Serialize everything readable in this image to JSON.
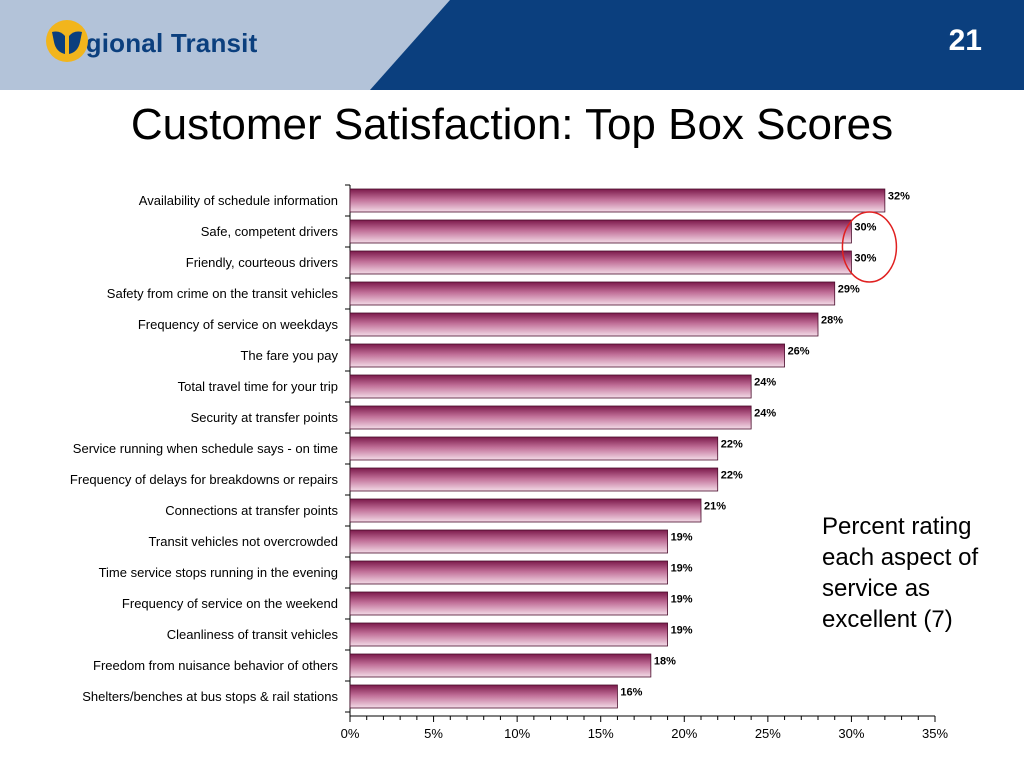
{
  "header": {
    "brand_name": "Regional Transit",
    "page_number": "21",
    "colors": {
      "band_dark": "#0b3f7e",
      "band_light": "#b3c3d9",
      "logo_mark": "#f2b51c"
    }
  },
  "title": "Customer Satisfaction: Top Box Scores",
  "caption": "Percent rating each aspect of service as excellent (7)",
  "chart_data": {
    "type": "bar",
    "orientation": "horizontal",
    "categories": [
      "Availability of schedule information",
      "Safe, competent drivers",
      "Friendly, courteous drivers",
      "Safety from crime on the transit vehicles",
      "Frequency of service on weekdays",
      "The fare you pay",
      "Total travel time for your trip",
      "Security at transfer points",
      "Service running when schedule says - on time",
      "Frequency of delays for breakdowns or repairs",
      "Connections at transfer points",
      "Transit vehicles not overcrowded",
      "Time service stops running in the evening",
      "Frequency of service on the weekend",
      "Cleanliness of transit vehicles",
      "Freedom from nuisance behavior of others",
      "Shelters/benches at bus stops & rail stations"
    ],
    "values": [
      32,
      30,
      30,
      29,
      28,
      26,
      24,
      24,
      22,
      22,
      21,
      19,
      19,
      19,
      19,
      18,
      16
    ],
    "data_labels": [
      "32%",
      "30%",
      "30%",
      "29%",
      "28%",
      "26%",
      "24%",
      "24%",
      "22%",
      "22%",
      "21%",
      "19%",
      "19%",
      "19%",
      "19%",
      "18%",
      "16%"
    ],
    "x_ticks": [
      "0%",
      "5%",
      "10%",
      "15%",
      "20%",
      "25%",
      "30%",
      "35%"
    ],
    "xlim": [
      0,
      35
    ],
    "highlighted": [
      "Safe, competent drivers",
      "Friendly, courteous drivers"
    ],
    "colors": {
      "bar_dark": "#7b1a4b",
      "bar_mid": "#c06e97",
      "bar_light": "#f3dbe7",
      "highlight_ring": "#e02020"
    },
    "grid": false,
    "legend": "none"
  }
}
